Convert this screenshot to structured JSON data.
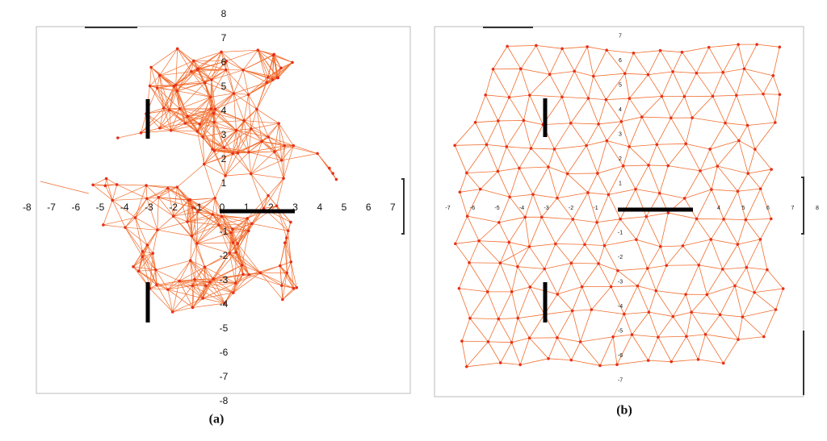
{
  "panels": [
    {
      "caption": "(a)",
      "x_labels": [
        "-8",
        "-7",
        "-6",
        "-5",
        "-4",
        "-3",
        "-2",
        "-1",
        "0",
        "1",
        "2",
        "3",
        "4",
        "5",
        "6",
        "7"
      ],
      "y_labels": [
        "8",
        "7",
        "6",
        "5",
        "4",
        "3",
        "2",
        "1",
        "-1",
        "-2",
        "-3",
        "-4",
        "-5",
        "-6",
        "-7",
        "-8"
      ]
    },
    {
      "caption": "(b)",
      "x_labels": [
        "-7",
        "-6",
        "-5",
        "-4",
        "-3",
        "-2",
        "-1",
        "4",
        "5",
        "6",
        "7",
        "8"
      ],
      "y_labels": [
        "7",
        "6",
        "5",
        "4",
        "3",
        "2",
        "1",
        "-1",
        "-2",
        "-3",
        "-4",
        "-5",
        "-6",
        "-7"
      ]
    }
  ]
}
